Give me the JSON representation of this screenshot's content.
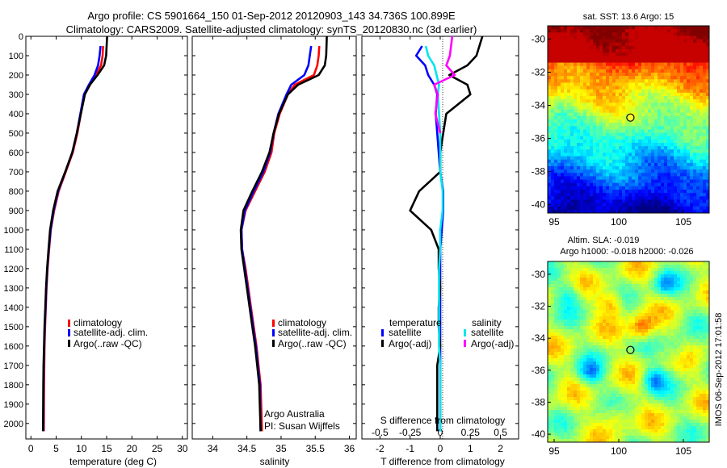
{
  "title": {
    "line1": "Argo profile: CS 5901664_150 01-Sep-2012 20120903_143 34.736S 100.899E",
    "line2": "Climatology: CARS2009. Satellite-adjusted climatology: synTS_20120830.nc (3d earlier)"
  },
  "depth_ticks": [
    "0",
    "100",
    "200",
    "300",
    "400",
    "500",
    "600",
    "700",
    "800",
    "900",
    "1000",
    "1100",
    "1200",
    "1300",
    "1400",
    "1500",
    "1600",
    "1700",
    "1800",
    "1900",
    "2000"
  ],
  "colors": {
    "climatology": "#ff0000",
    "satellite": "#0000ff",
    "argo": "#000000",
    "cyan": "#00e5ee",
    "magenta": "#ff00ff"
  },
  "chart_data": [
    {
      "type": "line",
      "title": "",
      "xlabel": "temperature (deg C)",
      "ylabel": "",
      "xlim": [
        -1,
        31
      ],
      "ylim": [
        2080,
        0
      ],
      "xticks": [
        "0",
        "5",
        "10",
        "15",
        "20",
        "25",
        "30"
      ],
      "legend_position": "bottom-center",
      "series": [
        {
          "name": "climatology",
          "color": "#ff0000",
          "x": [
            14.3,
            14.2,
            13.9,
            12.9,
            11.7,
            10.6,
            9.9,
            9.2,
            8.3,
            6.9,
            5.5,
            4.6,
            3.95,
            3.6,
            3.3,
            3.1,
            2.95,
            2.8,
            2.7,
            2.65,
            2.6,
            2.55
          ],
          "y": [
            50,
            100,
            150,
            200,
            250,
            300,
            400,
            500,
            600,
            700,
            800,
            900,
            1000,
            1100,
            1200,
            1300,
            1400,
            1500,
            1600,
            1700,
            1800,
            2040
          ]
        },
        {
          "name": "satellite-adj. clim.",
          "color": "#0000ff",
          "x": [
            13.8,
            13.6,
            13.3,
            12.6,
            11.5,
            10.5,
            9.8,
            9.1,
            8.2,
            6.8,
            5.4,
            4.5,
            3.9,
            3.55,
            3.25,
            3.05,
            2.9,
            2.75,
            2.65,
            2.55,
            2.5,
            2.45
          ],
          "y": [
            50,
            100,
            150,
            200,
            250,
            300,
            400,
            500,
            600,
            700,
            800,
            900,
            1000,
            1100,
            1200,
            1300,
            1400,
            1500,
            1600,
            1700,
            1800,
            2040
          ]
        },
        {
          "name": "Argo(..raw -QC)",
          "color": "#000000",
          "x": [
            15.1,
            14.9,
            14.5,
            13.2,
            11.7,
            10.7,
            9.9,
            9.1,
            8.2,
            6.8,
            5.3,
            4.4,
            3.8,
            3.5,
            3.2,
            3.0,
            2.85,
            2.7,
            2.6,
            2.5,
            2.45,
            2.4
          ],
          "y": [
            0,
            100,
            150,
            200,
            250,
            300,
            400,
            500,
            600,
            700,
            800,
            900,
            1000,
            1100,
            1200,
            1300,
            1400,
            1500,
            1600,
            1700,
            1800,
            2040
          ]
        }
      ]
    },
    {
      "type": "line",
      "title": "",
      "xlabel": "salinity",
      "ylabel": "",
      "xlim": [
        33.7,
        36.1
      ],
      "ylim": [
        2080,
        0
      ],
      "xticks": [
        "34",
        "34.5",
        "35",
        "35.5",
        "36"
      ],
      "legend_position": "bottom-right",
      "annotation": [
        "Argo Australia",
        "PI: Susan Wijffels"
      ],
      "series": [
        {
          "name": "climatology",
          "color": "#ff0000",
          "x": [
            35.56,
            35.55,
            35.53,
            35.48,
            35.2,
            35.1,
            34.98,
            34.9,
            34.86,
            34.76,
            34.62,
            34.48,
            34.42,
            34.43,
            34.48,
            34.52,
            34.56,
            34.6,
            34.64,
            34.67,
            34.7,
            34.72
          ],
          "y": [
            50,
            100,
            150,
            200,
            250,
            300,
            400,
            500,
            600,
            700,
            800,
            900,
            1000,
            1100,
            1200,
            1300,
            1400,
            1500,
            1600,
            1700,
            1800,
            2040
          ]
        },
        {
          "name": "satellite-adj. clim.",
          "color": "#0000ff",
          "x": [
            35.44,
            35.42,
            35.4,
            35.34,
            35.15,
            35.08,
            34.96,
            34.89,
            34.84,
            34.74,
            34.6,
            34.47,
            34.42,
            34.43,
            34.47,
            34.51,
            34.55,
            34.59,
            34.63,
            34.66,
            34.69,
            34.7
          ],
          "y": [
            50,
            100,
            150,
            200,
            250,
            300,
            400,
            500,
            600,
            700,
            800,
            900,
            1000,
            1100,
            1200,
            1300,
            1400,
            1500,
            1600,
            1700,
            1800,
            2040
          ]
        },
        {
          "name": "Argo(..raw -QC)",
          "color": "#000000",
          "x": [
            35.67,
            35.66,
            35.64,
            35.55,
            35.25,
            35.1,
            34.97,
            34.89,
            34.83,
            34.72,
            34.58,
            34.45,
            34.41,
            34.42,
            34.46,
            34.5,
            34.54,
            34.58,
            34.62,
            34.65,
            34.68,
            34.7
          ],
          "y": [
            0,
            100,
            150,
            200,
            250,
            300,
            400,
            500,
            600,
            700,
            800,
            900,
            1000,
            1100,
            1200,
            1300,
            1400,
            1500,
            1600,
            1700,
            1800,
            2040
          ]
        }
      ]
    },
    {
      "type": "line",
      "title": "",
      "xlabel": "T difference from climatology",
      "xlabel_top": "S difference from climatology",
      "xlim": [
        -2.6,
        2.6
      ],
      "ylim": [
        2080,
        0
      ],
      "xticks": [
        "-2",
        "-1",
        "0",
        "1",
        "2"
      ],
      "xticks_S": [
        "-0.5",
        "-0.25",
        "0",
        "0.25",
        "0.5"
      ],
      "legend_groups": {
        "temperature": "temperature",
        "salinity": "salinity"
      },
      "series": [
        {
          "name": "satellite",
          "group": "temperature",
          "color": "#0000ff",
          "x": [
            -0.6,
            -0.8,
            -0.5,
            -0.4,
            -0.2,
            -0.1,
            -0.15,
            -0.1,
            -0.05,
            0.0,
            0.1,
            0.1,
            0.05,
            0.0,
            0.0,
            0.0,
            0.0,
            0.0,
            0.0,
            0.0,
            0.0
          ],
          "y": [
            50,
            100,
            150,
            200,
            250,
            300,
            400,
            500,
            600,
            700,
            800,
            900,
            1000,
            1100,
            1200,
            1300,
            1400,
            1500,
            1600,
            1700,
            2040
          ]
        },
        {
          "name": "Argo(-adj)",
          "group": "temperature",
          "color": "#000000",
          "x": [
            1.4,
            1.2,
            0.9,
            0.3,
            0.9,
            1.0,
            0.2,
            0.1,
            0.0,
            0.0,
            -0.7,
            -1.0,
            -0.3,
            -0.05,
            -0.05,
            0.0,
            -0.05,
            -0.05,
            0.0,
            -0.1,
            -0.1
          ],
          "y": [
            0,
            100,
            150,
            200,
            250,
            300,
            400,
            500,
            600,
            700,
            800,
            900,
            1000,
            1100,
            1200,
            1300,
            1400,
            1500,
            1600,
            1700,
            2040
          ]
        },
        {
          "name": "satellite",
          "group": "salinity",
          "color": "#00e5ee",
          "x": [
            -0.12,
            -0.1,
            -0.05,
            -0.03,
            -0.01,
            -0.02,
            -0.01,
            0.0,
            0.0,
            0.0,
            0.02,
            0.02,
            0.0,
            0.0,
            -0.01,
            -0.01,
            -0.01,
            -0.01,
            -0.01,
            0.0,
            0.0
          ],
          "y": [
            50,
            100,
            150,
            200,
            250,
            300,
            400,
            500,
            600,
            700,
            800,
            900,
            1000,
            1100,
            1200,
            1300,
            1400,
            1500,
            1600,
            1700,
            2040
          ]
        },
        {
          "name": "Argo(-adj)",
          "group": "salinity",
          "color": "#ff00ff",
          "x": [
            0.1,
            0.08,
            0.05,
            0.12,
            -0.05,
            -0.02,
            -0.04,
            0.0
          ],
          "y": [
            0,
            100,
            150,
            200,
            250,
            300,
            400,
            500
          ]
        }
      ]
    },
    {
      "type": "heatmap",
      "title": "sat. SST: 13.6  Argo: 15",
      "xlim": [
        94.5,
        107
      ],
      "ylim": [
        -40.5,
        -29.2
      ],
      "xticks": [
        "95",
        "100",
        "105"
      ],
      "yticks": [
        "-30",
        "-32",
        "-34",
        "-36",
        "-38",
        "-40"
      ],
      "marker": {
        "lon": 100.899,
        "lat": -34.736
      },
      "colormap": "jet"
    },
    {
      "type": "heatmap",
      "title": "Altim. SLA: -0.019",
      "subtitle": "Argo h1000: -0.018  h2000: -0.026",
      "xlim": [
        94.5,
        107
      ],
      "ylim": [
        -40.5,
        -29.2
      ],
      "xticks": [
        "95",
        "100",
        "105"
      ],
      "yticks": [
        "-30",
        "-32",
        "-34",
        "-36",
        "-38",
        "-40"
      ],
      "marker": {
        "lon": 100.899,
        "lat": -34.736
      },
      "colormap": "jet"
    }
  ],
  "side_text": "IMOS 06-Sep-2012 17:01:58"
}
